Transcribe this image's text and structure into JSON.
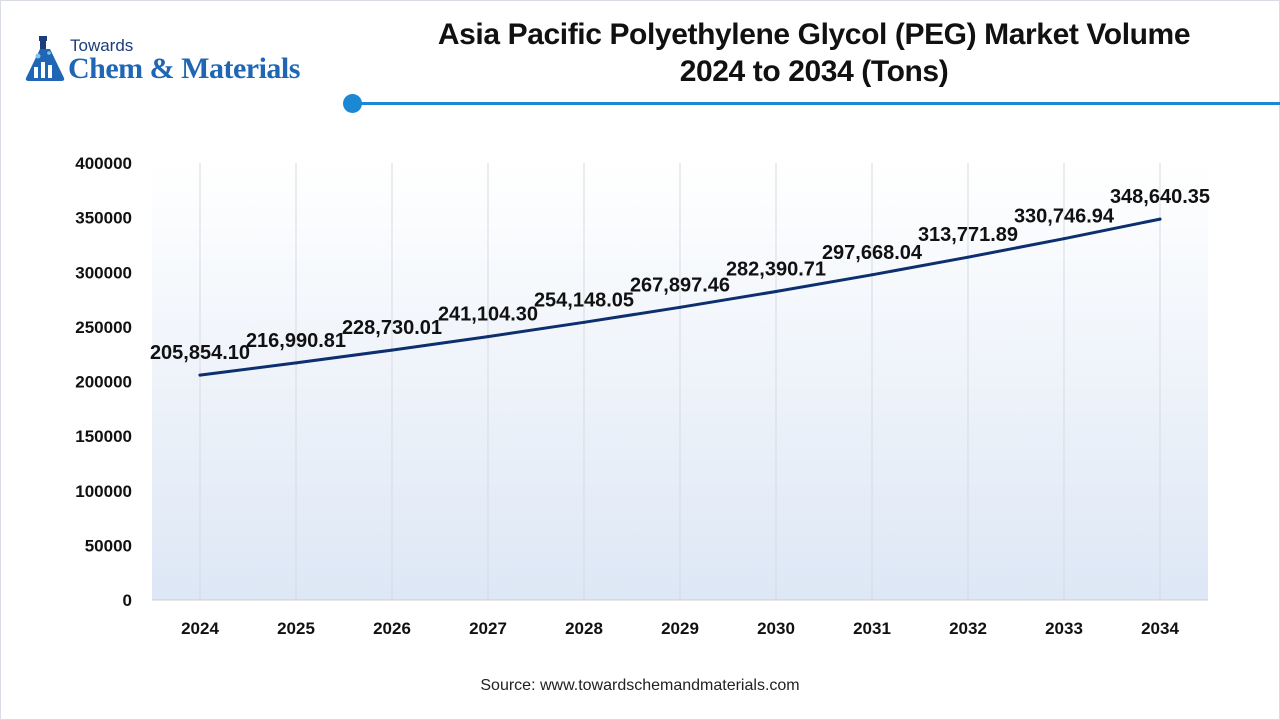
{
  "brand": {
    "towards": "Towards",
    "name": "Chem & Materials"
  },
  "title_line1": "Asia Pacific Polyethylene Glycol (PEG) Market Volume",
  "title_line2": "2024 to 2034 (Tons)",
  "source": "Source: www.towardschemandmaterials.com",
  "colors": {
    "line": "#0d2f6e",
    "accent": "#1c88d4",
    "brand": "#1f67b5",
    "plot_top": "#ffffff",
    "plot_bottom": "#dde7f5"
  },
  "chart_data": {
    "type": "line",
    "title": "Asia Pacific Polyethylene Glycol (PEG) Market Volume 2024 to 2034 (Tons)",
    "xlabel": "",
    "ylabel": "",
    "x": [
      "2024",
      "2025",
      "2026",
      "2027",
      "2028",
      "2029",
      "2030",
      "2031",
      "2032",
      "2033",
      "2034"
    ],
    "series": [
      {
        "values": [
          205854.1,
          216990.81,
          228730.01,
          241104.3,
          254148.05,
          267897.46,
          282390.71,
          297668.04,
          313771.89,
          330746.94,
          348640.35
        ]
      }
    ],
    "data_labels": [
      "205,854.10",
      "216,990.81",
      "228,730.01",
      "241,104.30",
      "254,148.05",
      "267,897.46",
      "282,390.71",
      "297,668.04",
      "313,771.89",
      "330,746.94",
      "348,640.35"
    ],
    "ylim": [
      0,
      400000
    ],
    "yticks": [
      "0",
      "50000",
      "100000",
      "150000",
      "200000",
      "250000",
      "300000",
      "350000",
      "400000"
    ],
    "grid": "vertical",
    "legend": "none"
  }
}
